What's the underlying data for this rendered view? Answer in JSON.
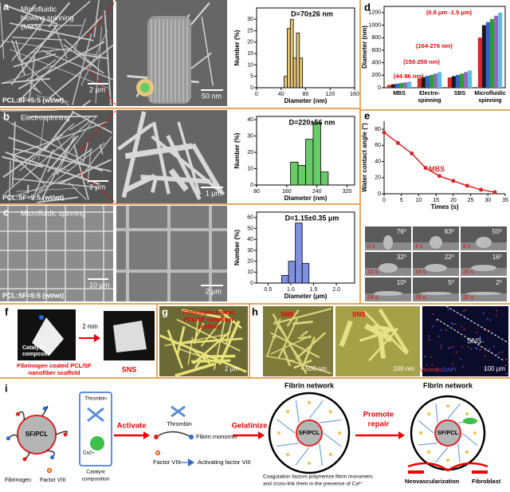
{
  "chart_data": [
    {
      "type": "histogram",
      "title": "D=70±26 nm",
      "xlabel": "Diameter (nm)",
      "ylabel": "Number (%)",
      "bins": [
        45,
        50,
        55,
        60,
        65,
        70,
        75
      ],
      "values": [
        5,
        26,
        30,
        13,
        24,
        13
      ],
      "color": "#e8c87a",
      "xlim": [
        0,
        160
      ],
      "ylim": [
        0,
        35
      ],
      "xticks": [
        0,
        40,
        80,
        120,
        160
      ],
      "yticks": [
        0,
        5,
        10,
        15,
        20,
        25,
        30
      ]
    },
    {
      "type": "histogram",
      "title": "D=220±56 nm",
      "xlabel": "Diameter (nm)",
      "ylabel": "Number (%)",
      "bins": [
        170,
        190,
        210,
        230,
        250,
        270
      ],
      "values": [
        14,
        12,
        28,
        38,
        8
      ],
      "color": "#66cc66",
      "xlim": [
        80,
        340
      ],
      "ylim": [
        0,
        42
      ],
      "xticks": [
        80,
        160,
        240,
        320
      ],
      "yticks": [
        0,
        10,
        20,
        30,
        40
      ]
    },
    {
      "type": "histogram",
      "title": "D=1.15±0.35 μm",
      "xlabel": "Diameter (μm)",
      "ylabel": "Number (%)",
      "bins": [
        0.8,
        0.95,
        1.1,
        1.25,
        1.4
      ],
      "values": [
        7,
        20,
        55,
        18
      ],
      "color": "#8090e0",
      "xlim": [
        0.25,
        2.4
      ],
      "ylim": [
        0,
        65
      ],
      "xticks": [
        0.5,
        {
          "value": 1.0,
          "label": "1.0"
        },
        1.5,
        {
          "value": 2.0,
          "label": "2.0"
        }
      ],
      "yticks": [
        0,
        10,
        20,
        30,
        40,
        50,
        60
      ]
    },
    {
      "type": "bar",
      "ylabel": "Diameter (nm)",
      "categories": [
        [
          "MBS"
        ],
        [
          "Electro-",
          "spinning"
        ],
        [
          "SBS"
        ],
        [
          "Microfluidic",
          "spinning"
        ]
      ],
      "series": [
        {
          "color": "#d62728",
          "values": [
            44,
            150,
            164,
            800
          ]
        },
        {
          "color": "#1a1a1a",
          "values": [
            55,
            170,
            185,
            1000
          ]
        },
        {
          "color": "#3a5fcd",
          "values": [
            65,
            190,
            205,
            1050
          ]
        },
        {
          "color": "#2ca02c",
          "values": [
            75,
            205,
            225,
            1100
          ]
        },
        {
          "color": "#9467bd",
          "values": [
            85,
            225,
            250,
            1150
          ]
        },
        {
          "color": "#5bc0de",
          "values": [
            96,
            250,
            276,
            1200
          ]
        }
      ],
      "annotations": [
        "(44-96 nm)",
        "(150-250 nm)",
        "(164-276 nm)",
        "(0.8 μm -1.5 μm)"
      ],
      "ylim": [
        0,
        1300
      ],
      "yticks": [
        0,
        200,
        400,
        600,
        800,
        1000,
        1200
      ]
    },
    {
      "type": "line",
      "xlabel": "Times (s)",
      "ylabel": "Water contact angle (°)",
      "label": "MBS",
      "x": [
        0,
        4,
        8,
        12,
        16,
        20,
        24,
        28,
        32
      ],
      "values": [
        76,
        63,
        50,
        32,
        22,
        16,
        10,
        5,
        2
      ],
      "color": "#d62728",
      "xlim": [
        0,
        35
      ],
      "ylim": [
        0,
        90
      ],
      "xticks": [
        0,
        5,
        10,
        15,
        20,
        25,
        30,
        35
      ],
      "yticks": [
        0,
        20,
        40,
        60,
        80
      ]
    }
  ],
  "panel_a": {
    "label": "a",
    "method": [
      "Microfluidic",
      "blowing spinning",
      "(MBS)"
    ],
    "scale_1": "2 μm",
    "ratio": "PCL:SF=5:5 (wt/wt)",
    "scale_2": "50 nm"
  },
  "panel_b": {
    "label": "b",
    "method": "Electrospinning",
    "scale_1": "2 μm",
    "ratio": "PCL:SF=5:5 (wt/wt)",
    "scale_2": "1 μm"
  },
  "panel_c": {
    "label": "c",
    "method": "Microfluidic spinning",
    "scale_1": "10 μm",
    "ratio": "PCL:SF=5:5 (wt/wt)",
    "scale_2": "2 μm"
  },
  "panel_d": {
    "label": "d"
  },
  "panel_e": {
    "label": "e",
    "droplets": [
      {
        "angle": "76⁰",
        "time": "0 s"
      },
      {
        "angle": "63⁰",
        "time": "4 s"
      },
      {
        "angle": "50⁰",
        "time": "8 s"
      },
      {
        "angle": "32⁰",
        "time": "12 s"
      },
      {
        "angle": "22⁰",
        "time": "16 s"
      },
      {
        "angle": "16⁰",
        "time": "20 s"
      },
      {
        "angle": "10⁰",
        "time": "24 s"
      },
      {
        "angle": "5⁰",
        "time": "28 s"
      },
      {
        "angle": "2⁰",
        "time": "32 s"
      }
    ]
  },
  "panel_f": {
    "label": "f",
    "catalyst": [
      "Catalyst",
      "composite"
    ],
    "scaffold": [
      "Fibrinogen coated PCL/SF",
      "nanofiber scaffold"
    ],
    "time": "2 min",
    "product": "SNS"
  },
  "panel_g": {
    "label": "g",
    "caption": [
      "Fibrinogen coated",
      "PCL/SF nanofiber",
      "scaffold"
    ],
    "scale": "2 μm"
  },
  "panel_h": {
    "label": "h",
    "images": [
      {
        "title": "SNS",
        "scale": "500 nm"
      },
      {
        "title": "SNS",
        "scale": "100 nm"
      },
      {
        "title": "SNS",
        "stain": [
          "Vimentin",
          "/DAPI"
        ],
        "scale": "100 μm"
      }
    ]
  },
  "panel_i": {
    "label": "i",
    "core_1": "SF/PCL",
    "fibrinogen": "Fibrinogen",
    "factor_1": "Factor VIII",
    "thrombin_1": "Thrombin",
    "calcium": "Ca2+",
    "catalyst": [
      "Catalyst",
      "composition"
    ],
    "step_1": "Activate",
    "thrombin_2": "Thrombin",
    "monomer": "Fibrin monomer",
    "factor_2": "Factor VIII",
    "activating": "Activating factor VIII",
    "step_2": "Gelatinize",
    "network_1": "Fibrin network",
    "core_2": "SF/PCL",
    "note": [
      "Coagulation factors polymerize fibrin monomers",
      "and cross-link them in the presence of Ca²⁺"
    ],
    "step_3": [
      "Promote",
      "repair"
    ],
    "network_2": "Fibrin network",
    "core_3": "SF/PCL",
    "vessel": "Neovascularization",
    "fibroblast": "Fibroblast"
  }
}
